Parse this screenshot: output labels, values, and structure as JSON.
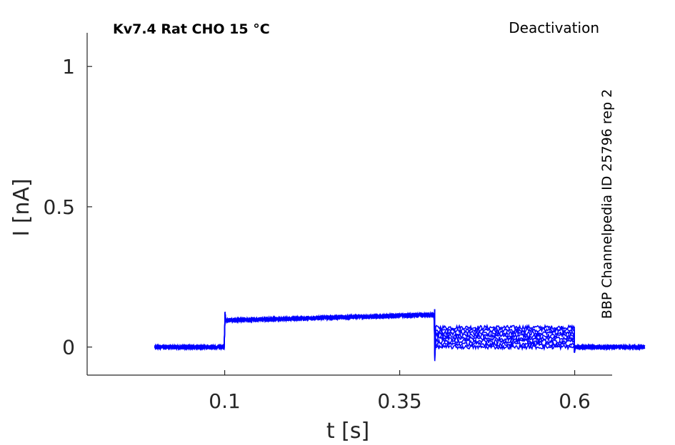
{
  "chart_data": {
    "type": "line",
    "title": "Kv7.4  Rat  CHO  15 °C",
    "protocol": "Deactivation",
    "source": "BBP Channelpedia ID 25796 rep 2",
    "xlabel": "t [s]",
    "ylabel": "I [nA]",
    "xlim": [
      -0.0965,
      0.6535
    ],
    "ylim": [
      -0.1,
      1.12
    ],
    "xticks": [
      0.1,
      0.35,
      0.6
    ],
    "xtick_labels": [
      "0.1",
      "0.35",
      "0.6"
    ],
    "yticks": [
      0,
      0.5,
      1
    ],
    "ytick_labels": [
      "0",
      "0.5",
      "1"
    ],
    "grid": false,
    "line_color": "#0000ff",
    "axis_color": "#262626",
    "trace_count": 8,
    "segments": [
      {
        "t_start": 0.0,
        "t_end": 0.1,
        "current_start": 0.0,
        "current_end": 0.0
      },
      {
        "t_start": 0.1,
        "t_end": 0.4,
        "current_start": 0.095,
        "current_end": 0.115
      },
      {
        "t_start": 0.4,
        "t_end": 0.6,
        "current_start": 0.0,
        "current_end": 0.07
      },
      {
        "t_start": 0.6,
        "t_end": 0.7,
        "current_start": 0.0,
        "current_end": 0.0
      }
    ],
    "series": [
      {
        "x": [
          0.0,
          0.1,
          0.1,
          0.4,
          0.4,
          0.6,
          0.6,
          0.7
        ],
        "y": [
          0,
          0,
          0.095,
          0.115,
          0.07,
          0.07,
          0,
          0
        ]
      },
      {
        "x": [
          0.0,
          0.1,
          0.1,
          0.4,
          0.4,
          0.6,
          0.6,
          0.7
        ],
        "y": [
          0,
          0,
          0.095,
          0.115,
          0.06,
          0.06,
          0,
          0
        ]
      },
      {
        "x": [
          0.0,
          0.1,
          0.1,
          0.4,
          0.4,
          0.6,
          0.6,
          0.7
        ],
        "y": [
          0,
          0,
          0.095,
          0.115,
          0.05,
          0.05,
          0,
          0
        ]
      },
      {
        "x": [
          0.0,
          0.1,
          0.1,
          0.4,
          0.4,
          0.6,
          0.6,
          0.7
        ],
        "y": [
          0,
          0,
          0.095,
          0.115,
          0.04,
          0.04,
          0,
          0
        ]
      },
      {
        "x": [
          0.0,
          0.1,
          0.1,
          0.4,
          0.4,
          0.6,
          0.6,
          0.7
        ],
        "y": [
          0,
          0,
          0.095,
          0.115,
          0.03,
          0.03,
          0,
          0
        ]
      },
      {
        "x": [
          0.0,
          0.1,
          0.1,
          0.4,
          0.4,
          0.6,
          0.6,
          0.7
        ],
        "y": [
          0,
          0,
          0.095,
          0.115,
          0.02,
          0.02,
          0,
          0
        ]
      },
      {
        "x": [
          0.0,
          0.1,
          0.1,
          0.4,
          0.4,
          0.6,
          0.6,
          0.7
        ],
        "y": [
          0,
          0,
          0.095,
          0.115,
          0.01,
          0.01,
          0,
          0
        ]
      },
      {
        "x": [
          0.0,
          0.1,
          0.1,
          0.4,
          0.4,
          0.6,
          0.6,
          0.7
        ],
        "y": [
          0,
          0,
          0.095,
          0.115,
          0.0,
          0.0,
          0,
          0
        ]
      }
    ]
  }
}
